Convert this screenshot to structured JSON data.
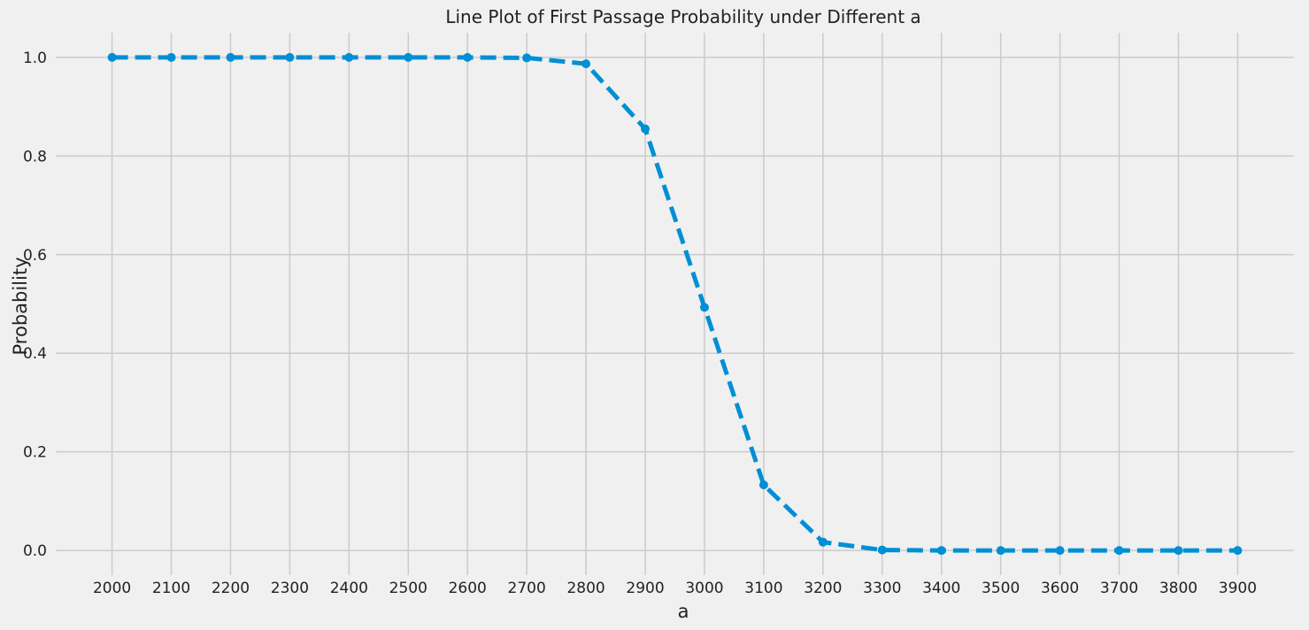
{
  "chart_data": {
    "type": "line",
    "title": "Line Plot of First Passage Probability under Different a",
    "xlabel": "a",
    "ylabel": "Probability",
    "x": [
      2000,
      2100,
      2200,
      2300,
      2400,
      2500,
      2600,
      2700,
      2800,
      2900,
      3000,
      3100,
      3200,
      3300,
      3400,
      3500,
      3600,
      3700,
      3800,
      3900
    ],
    "series": [
      {
        "values": [
          1.0,
          1.0,
          1.0,
          1.0,
          1.0,
          1.0,
          1.0,
          0.999,
          0.987,
          0.855,
          0.493,
          0.133,
          0.017,
          0.001,
          0.0,
          0.0,
          0.0,
          0.0,
          0.0,
          0.0
        ],
        "color": "#008fd5",
        "line_style": "dashed",
        "marker": "circle"
      }
    ],
    "xticks": [
      "2000",
      "2100",
      "2200",
      "2300",
      "2400",
      "2500",
      "2600",
      "2700",
      "2800",
      "2900",
      "3000",
      "3100",
      "3200",
      "3300",
      "3400",
      "3500",
      "3600",
      "3700",
      "3800",
      "3900"
    ],
    "yticks": [
      "0.0",
      "0.2",
      "0.4",
      "0.6",
      "0.8",
      "1.0"
    ],
    "ytick_values": [
      0.0,
      0.2,
      0.4,
      0.6,
      0.8,
      1.0
    ],
    "xlim": [
      1905,
      3995
    ],
    "ylim": [
      -0.05,
      1.05
    ],
    "grid": true,
    "legend": "none",
    "background": "#f0f0f0"
  }
}
